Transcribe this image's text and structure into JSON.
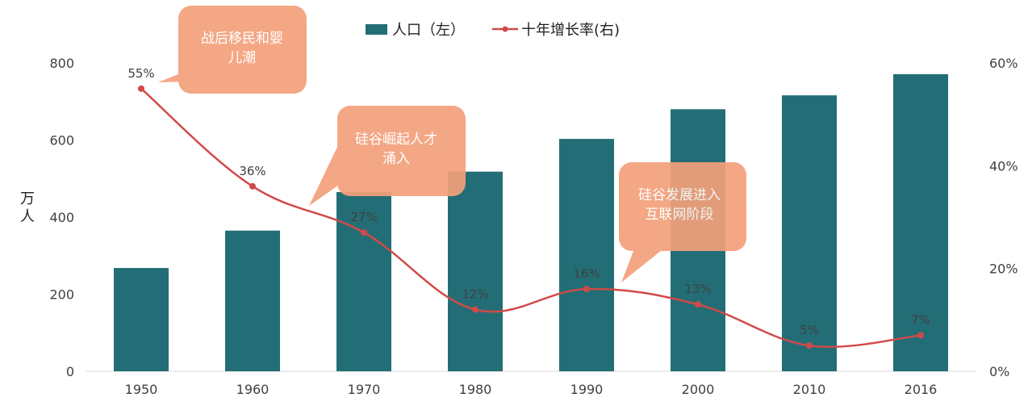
{
  "chart_data": {
    "type": "bar+line",
    "categories": [
      "1950",
      "1960",
      "1970",
      "1980",
      "1990",
      "2000",
      "2010",
      "2016"
    ],
    "series": [
      {
        "name": "人口（左）",
        "type": "bar",
        "axis": "left",
        "values": [
          268,
          365,
          465,
          518,
          603,
          680,
          716,
          771
        ]
      },
      {
        "name": "十年增长率(右)",
        "type": "line",
        "axis": "right",
        "values": [
          55,
          36,
          27,
          12,
          16,
          13,
          5,
          7
        ],
        "labels": [
          "55%",
          "36%",
          "27%",
          "12%",
          "16%",
          "13%",
          "5%",
          "7%"
        ]
      }
    ],
    "ylabel": "万人",
    "ylim": [
      0,
      800
    ],
    "yticks": [
      "0",
      "200",
      "400",
      "600",
      "800"
    ],
    "y2lim": [
      0,
      60
    ],
    "y2ticks": [
      "0%",
      "20%",
      "40%",
      "60%"
    ],
    "legend_position": "top-center",
    "grid": false,
    "colors": {
      "bar": "#236E76",
      "line": "#D04A48",
      "callout": "#F4A07A"
    },
    "annotations": [
      {
        "lines": [
          "战后移民和婴",
          "儿潮"
        ],
        "points_to": "1950"
      },
      {
        "lines": [
          "硅谷崛起人才",
          "涌入"
        ],
        "points_to": "1960"
      },
      {
        "lines": [
          "硅谷发展进入",
          "互联网阶段"
        ],
        "points_to": "1990"
      }
    ]
  }
}
